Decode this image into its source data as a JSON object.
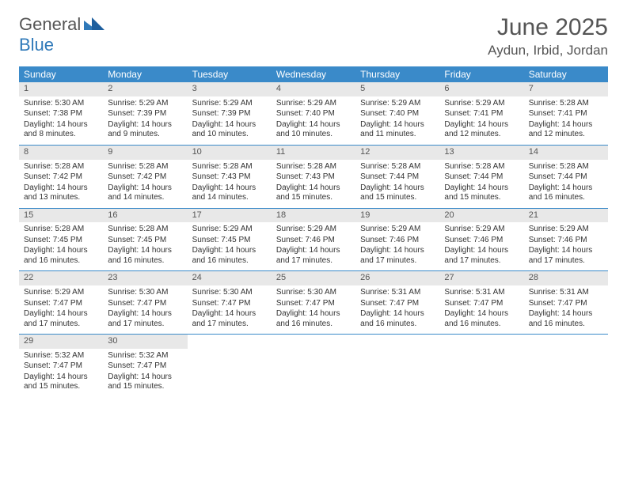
{
  "brand": {
    "part1": "General",
    "part2": "Blue"
  },
  "title": "June 2025",
  "location": "Aydun, Irbid, Jordan",
  "colors": {
    "header_bg": "#3a8ac9",
    "header_text": "#ffffff",
    "daynum_bg": "#e8e8e8",
    "text": "#333333",
    "rule": "#3a8ac9",
    "brand_gray": "#555555",
    "brand_blue": "#2f79b9"
  },
  "dow": [
    "Sunday",
    "Monday",
    "Tuesday",
    "Wednesday",
    "Thursday",
    "Friday",
    "Saturday"
  ],
  "weeks": [
    [
      {
        "n": "1",
        "sr": "Sunrise: 5:30 AM",
        "ss": "Sunset: 7:38 PM",
        "dl": "Daylight: 14 hours and 8 minutes."
      },
      {
        "n": "2",
        "sr": "Sunrise: 5:29 AM",
        "ss": "Sunset: 7:39 PM",
        "dl": "Daylight: 14 hours and 9 minutes."
      },
      {
        "n": "3",
        "sr": "Sunrise: 5:29 AM",
        "ss": "Sunset: 7:39 PM",
        "dl": "Daylight: 14 hours and 10 minutes."
      },
      {
        "n": "4",
        "sr": "Sunrise: 5:29 AM",
        "ss": "Sunset: 7:40 PM",
        "dl": "Daylight: 14 hours and 10 minutes."
      },
      {
        "n": "5",
        "sr": "Sunrise: 5:29 AM",
        "ss": "Sunset: 7:40 PM",
        "dl": "Daylight: 14 hours and 11 minutes."
      },
      {
        "n": "6",
        "sr": "Sunrise: 5:29 AM",
        "ss": "Sunset: 7:41 PM",
        "dl": "Daylight: 14 hours and 12 minutes."
      },
      {
        "n": "7",
        "sr": "Sunrise: 5:28 AM",
        "ss": "Sunset: 7:41 PM",
        "dl": "Daylight: 14 hours and 12 minutes."
      }
    ],
    [
      {
        "n": "8",
        "sr": "Sunrise: 5:28 AM",
        "ss": "Sunset: 7:42 PM",
        "dl": "Daylight: 14 hours and 13 minutes."
      },
      {
        "n": "9",
        "sr": "Sunrise: 5:28 AM",
        "ss": "Sunset: 7:42 PM",
        "dl": "Daylight: 14 hours and 14 minutes."
      },
      {
        "n": "10",
        "sr": "Sunrise: 5:28 AM",
        "ss": "Sunset: 7:43 PM",
        "dl": "Daylight: 14 hours and 14 minutes."
      },
      {
        "n": "11",
        "sr": "Sunrise: 5:28 AM",
        "ss": "Sunset: 7:43 PM",
        "dl": "Daylight: 14 hours and 15 minutes."
      },
      {
        "n": "12",
        "sr": "Sunrise: 5:28 AM",
        "ss": "Sunset: 7:44 PM",
        "dl": "Daylight: 14 hours and 15 minutes."
      },
      {
        "n": "13",
        "sr": "Sunrise: 5:28 AM",
        "ss": "Sunset: 7:44 PM",
        "dl": "Daylight: 14 hours and 15 minutes."
      },
      {
        "n": "14",
        "sr": "Sunrise: 5:28 AM",
        "ss": "Sunset: 7:44 PM",
        "dl": "Daylight: 14 hours and 16 minutes."
      }
    ],
    [
      {
        "n": "15",
        "sr": "Sunrise: 5:28 AM",
        "ss": "Sunset: 7:45 PM",
        "dl": "Daylight: 14 hours and 16 minutes."
      },
      {
        "n": "16",
        "sr": "Sunrise: 5:28 AM",
        "ss": "Sunset: 7:45 PM",
        "dl": "Daylight: 14 hours and 16 minutes."
      },
      {
        "n": "17",
        "sr": "Sunrise: 5:29 AM",
        "ss": "Sunset: 7:45 PM",
        "dl": "Daylight: 14 hours and 16 minutes."
      },
      {
        "n": "18",
        "sr": "Sunrise: 5:29 AM",
        "ss": "Sunset: 7:46 PM",
        "dl": "Daylight: 14 hours and 17 minutes."
      },
      {
        "n": "19",
        "sr": "Sunrise: 5:29 AM",
        "ss": "Sunset: 7:46 PM",
        "dl": "Daylight: 14 hours and 17 minutes."
      },
      {
        "n": "20",
        "sr": "Sunrise: 5:29 AM",
        "ss": "Sunset: 7:46 PM",
        "dl": "Daylight: 14 hours and 17 minutes."
      },
      {
        "n": "21",
        "sr": "Sunrise: 5:29 AM",
        "ss": "Sunset: 7:46 PM",
        "dl": "Daylight: 14 hours and 17 minutes."
      }
    ],
    [
      {
        "n": "22",
        "sr": "Sunrise: 5:29 AM",
        "ss": "Sunset: 7:47 PM",
        "dl": "Daylight: 14 hours and 17 minutes."
      },
      {
        "n": "23",
        "sr": "Sunrise: 5:30 AM",
        "ss": "Sunset: 7:47 PM",
        "dl": "Daylight: 14 hours and 17 minutes."
      },
      {
        "n": "24",
        "sr": "Sunrise: 5:30 AM",
        "ss": "Sunset: 7:47 PM",
        "dl": "Daylight: 14 hours and 17 minutes."
      },
      {
        "n": "25",
        "sr": "Sunrise: 5:30 AM",
        "ss": "Sunset: 7:47 PM",
        "dl": "Daylight: 14 hours and 16 minutes."
      },
      {
        "n": "26",
        "sr": "Sunrise: 5:31 AM",
        "ss": "Sunset: 7:47 PM",
        "dl": "Daylight: 14 hours and 16 minutes."
      },
      {
        "n": "27",
        "sr": "Sunrise: 5:31 AM",
        "ss": "Sunset: 7:47 PM",
        "dl": "Daylight: 14 hours and 16 minutes."
      },
      {
        "n": "28",
        "sr": "Sunrise: 5:31 AM",
        "ss": "Sunset: 7:47 PM",
        "dl": "Daylight: 14 hours and 16 minutes."
      }
    ],
    [
      {
        "n": "29",
        "sr": "Sunrise: 5:32 AM",
        "ss": "Sunset: 7:47 PM",
        "dl": "Daylight: 14 hours and 15 minutes."
      },
      {
        "n": "30",
        "sr": "Sunrise: 5:32 AM",
        "ss": "Sunset: 7:47 PM",
        "dl": "Daylight: 14 hours and 15 minutes."
      },
      null,
      null,
      null,
      null,
      null
    ]
  ]
}
